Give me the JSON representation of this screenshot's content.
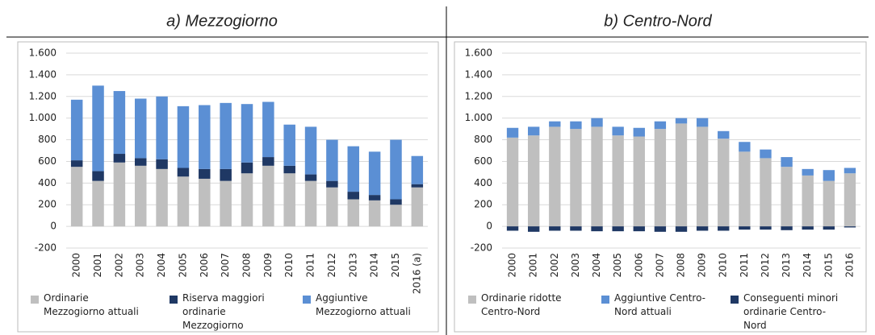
{
  "chart_data": [
    {
      "type": "bar",
      "stacked": true,
      "title": "a) Mezzogiorno",
      "categories": [
        "2000",
        "2001",
        "2002",
        "2003",
        "2004",
        "2005",
        "2006",
        "2007",
        "2008",
        "2009",
        "2010",
        "2011",
        "2012",
        "2013",
        "2014",
        "2015",
        "2016 (a)"
      ],
      "series": [
        {
          "name": "Ordinarie Mezzogiorno attuali",
          "color": "#bfbfbf",
          "values": [
            550,
            420,
            590,
            560,
            530,
            460,
            440,
            420,
            490,
            560,
            490,
            420,
            360,
            250,
            240,
            200,
            360
          ]
        },
        {
          "name": "Riserva maggiori ordinarie Mezzogiorno",
          "color": "#1f3864",
          "values": [
            60,
            90,
            80,
            70,
            90,
            80,
            90,
            110,
            100,
            80,
            70,
            60,
            60,
            70,
            50,
            50,
            30
          ]
        },
        {
          "name": "Aggiuntive Mezzogiorno attuali",
          "color": "#5b8fd4",
          "values": [
            560,
            790,
            580,
            550,
            580,
            570,
            590,
            610,
            540,
            510,
            380,
            440,
            380,
            420,
            400,
            550,
            260
          ]
        }
      ],
      "ylim": [
        -200,
        1600
      ],
      "yticks": [
        -200,
        0,
        200,
        400,
        600,
        800,
        {
          "value": 1000,
          "label": "1.000"
        },
        {
          "value": 1200,
          "label": "1.200"
        },
        {
          "value": 1400,
          "label": "1.400"
        },
        {
          "value": 1600,
          "label": "1.600"
        }
      ],
      "grid": true,
      "legend": "bottom"
    },
    {
      "type": "bar",
      "stacked": true,
      "title": "b) Centro-Nord",
      "categories": [
        "2000",
        "2001",
        "2002",
        "2003",
        "2004",
        "2005",
        "2006",
        "2007",
        "2008",
        "2009",
        "2010",
        "2011",
        "2012",
        "2013",
        "2014",
        "2015",
        "2016"
      ],
      "series": [
        {
          "name": "Ordinarie ridotte Centro-Nord",
          "color": "#bfbfbf",
          "values": [
            820,
            840,
            920,
            900,
            920,
            840,
            830,
            900,
            950,
            920,
            810,
            690,
            630,
            550,
            470,
            420,
            490
          ]
        },
        {
          "name": "Aggiuntive Centro-Nord attuali",
          "color": "#5b8fd4",
          "values": [
            90,
            80,
            50,
            70,
            80,
            80,
            80,
            70,
            50,
            80,
            70,
            90,
            80,
            90,
            60,
            100,
            50
          ]
        },
        {
          "name": "Conseguenti minori ordinarie Centro-Nord",
          "color": "#1f3864",
          "values": [
            -40,
            -50,
            -40,
            -40,
            -45,
            -45,
            -45,
            -50,
            -50,
            -40,
            -40,
            -30,
            -30,
            -35,
            -30,
            -30,
            -10
          ]
        }
      ],
      "ylim": [
        -200,
        1600
      ],
      "yticks": [
        -200,
        0,
        200,
        400,
        600,
        800,
        {
          "value": 1000,
          "label": "1.000"
        },
        {
          "value": 1200,
          "label": "1.200"
        },
        {
          "value": 1400,
          "label": "1.400"
        },
        {
          "value": 1600,
          "label": "1.600"
        }
      ],
      "grid": true,
      "legend": "bottom"
    }
  ]
}
